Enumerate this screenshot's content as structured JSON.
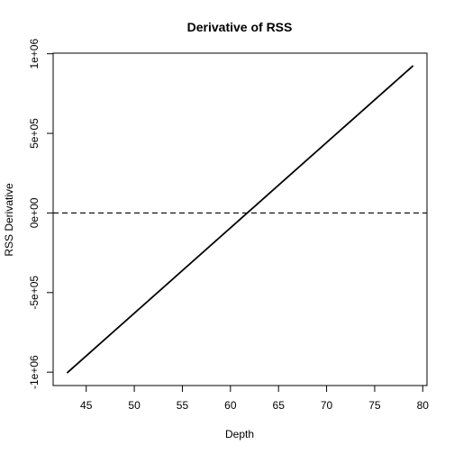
{
  "chart_data": {
    "type": "line",
    "title": "Derivative of RSS",
    "xlabel": "Depth",
    "ylabel": "RSS Derivative",
    "xlim": [
      41.56,
      80.44
    ],
    "ylim": [
      -1084000,
      1004000
    ],
    "x_ticks": [
      45,
      50,
      55,
      60,
      65,
      70,
      75,
      80
    ],
    "x_tick_labels": [
      "45",
      "50",
      "55",
      "60",
      "65",
      "70",
      "75",
      "80"
    ],
    "y_ticks": [
      -1000000,
      -500000,
      0,
      500000,
      1000000
    ],
    "y_tick_labels": [
      "-1e+06",
      "-5e+05",
      "0e+00",
      "5e+05",
      "1e+06"
    ],
    "grid": false,
    "series": [
      {
        "style": "solid",
        "color": "#000000",
        "x": [
          43,
          79
        ],
        "y": [
          -1005000,
          925000
        ]
      }
    ],
    "reference_lines": [
      {
        "orientation": "horizontal",
        "y": 0,
        "style": "dashed",
        "color": "#000000"
      }
    ]
  }
}
